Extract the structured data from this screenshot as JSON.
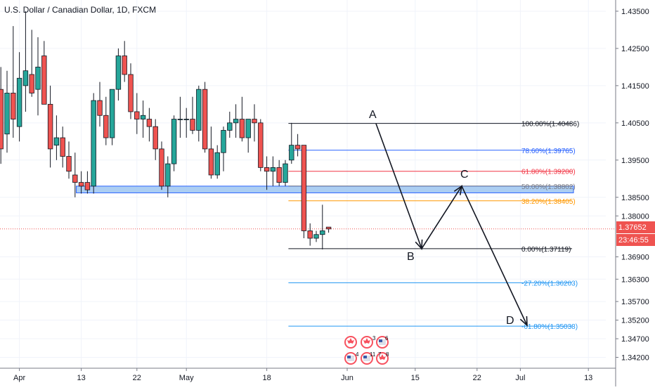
{
  "header": {
    "title": "U.S. Dollar / Canadian Dollar, 1D, FXCM"
  },
  "price_badge": {
    "price": "1.37652",
    "countdown": "23:46:55"
  },
  "colors": {
    "up": "#26a69a",
    "down": "#ef5350",
    "axis_text": "#131722",
    "grid": "#f0f3fa",
    "support_fill": "#9ec6f0",
    "support_stroke": "#2962ff",
    "price_line": "#ef5350",
    "fib_100": "#131722",
    "fib_786": "#2962ff",
    "fib_618": "#f23645",
    "fib_50": "#787b86",
    "fib_382": "#ff9800",
    "fib_0": "#131722",
    "fib_ext": "#2196f3"
  },
  "chart_data": {
    "type": "candlestick",
    "title": "U.S. Dollar / Canadian Dollar, 1D, FXCM",
    "ylim": [
      1.3404,
      1.4365
    ],
    "y_ticks": [
      "1.43500",
      "1.42500",
      "1.41500",
      "1.40500",
      "1.39500",
      "1.38500",
      "1.38000",
      "1.36900",
      "1.36300",
      "1.35700",
      "1.35200",
      "1.34700",
      "1.34200"
    ],
    "x_ticks": [
      {
        "label": "Apr",
        "i": 3
      },
      {
        "label": "13",
        "i": 13
      },
      {
        "label": "22",
        "i": 22
      },
      {
        "label": "May",
        "i": 30
      },
      {
        "label": "18",
        "i": 43
      },
      {
        "label": "Jun",
        "i": 56
      },
      {
        "label": "15",
        "i": 67
      },
      {
        "label": "22",
        "i": 77
      },
      {
        "label": "Jul",
        "i": 84
      },
      {
        "label": "13",
        "i": 95
      }
    ],
    "candles": [
      {
        "o": 1.414,
        "h": 1.42,
        "l": 1.394,
        "c": 1.398
      },
      {
        "o": 1.402,
        "h": 1.419,
        "l": 1.397,
        "c": 1.413
      },
      {
        "o": 1.413,
        "h": 1.431,
        "l": 1.401,
        "c": 1.406
      },
      {
        "o": 1.404,
        "h": 1.424,
        "l": 1.4,
        "c": 1.417
      },
      {
        "o": 1.415,
        "h": 1.435,
        "l": 1.408,
        "c": 1.419
      },
      {
        "o": 1.418,
        "h": 1.43,
        "l": 1.412,
        "c": 1.413
      },
      {
        "o": 1.414,
        "h": 1.428,
        "l": 1.407,
        "c": 1.42
      },
      {
        "o": 1.423,
        "h": 1.427,
        "l": 1.41,
        "c": 1.41
      },
      {
        "o": 1.41,
        "h": 1.415,
        "l": 1.393,
        "c": 1.398
      },
      {
        "o": 1.399,
        "h": 1.407,
        "l": 1.395,
        "c": 1.401
      },
      {
        "o": 1.401,
        "h": 1.404,
        "l": 1.393,
        "c": 1.396
      },
      {
        "o": 1.396,
        "h": 1.4,
        "l": 1.39,
        "c": 1.392
      },
      {
        "o": 1.391,
        "h": 1.397,
        "l": 1.385,
        "c": 1.389
      },
      {
        "o": 1.389,
        "h": 1.392,
        "l": 1.386,
        "c": 1.388
      },
      {
        "o": 1.389,
        "h": 1.392,
        "l": 1.386,
        "c": 1.387
      },
      {
        "o": 1.388,
        "h": 1.413,
        "l": 1.386,
        "c": 1.411
      },
      {
        "o": 1.411,
        "h": 1.416,
        "l": 1.404,
        "c": 1.407
      },
      {
        "o": 1.407,
        "h": 1.412,
        "l": 1.399,
        "c": 1.401
      },
      {
        "o": 1.401,
        "h": 1.414,
        "l": 1.399,
        "c": 1.414
      },
      {
        "o": 1.414,
        "h": 1.425,
        "l": 1.411,
        "c": 1.423
      },
      {
        "o": 1.423,
        "h": 1.427,
        "l": 1.416,
        "c": 1.418
      },
      {
        "o": 1.418,
        "h": 1.421,
        "l": 1.406,
        "c": 1.408
      },
      {
        "o": 1.408,
        "h": 1.413,
        "l": 1.402,
        "c": 1.406
      },
      {
        "o": 1.406,
        "h": 1.411,
        "l": 1.401,
        "c": 1.407
      },
      {
        "o": 1.406,
        "h": 1.409,
        "l": 1.4,
        "c": 1.404
      },
      {
        "o": 1.404,
        "h": 1.406,
        "l": 1.395,
        "c": 1.398
      },
      {
        "o": 1.398,
        "h": 1.4,
        "l": 1.387,
        "c": 1.388
      },
      {
        "o": 1.388,
        "h": 1.396,
        "l": 1.385,
        "c": 1.394
      },
      {
        "o": 1.394,
        "h": 1.407,
        "l": 1.392,
        "c": 1.406
      },
      {
        "o": 1.406,
        "h": 1.412,
        "l": 1.401,
        "c": 1.406
      },
      {
        "o": 1.406,
        "h": 1.409,
        "l": 1.401,
        "c": 1.406
      },
      {
        "o": 1.406,
        "h": 1.412,
        "l": 1.402,
        "c": 1.403
      },
      {
        "o": 1.403,
        "h": 1.415,
        "l": 1.4,
        "c": 1.414
      },
      {
        "o": 1.414,
        "h": 1.416,
        "l": 1.397,
        "c": 1.398
      },
      {
        "o": 1.398,
        "h": 1.404,
        "l": 1.39,
        "c": 1.391
      },
      {
        "o": 1.391,
        "h": 1.399,
        "l": 1.39,
        "c": 1.397
      },
      {
        "o": 1.397,
        "h": 1.404,
        "l": 1.392,
        "c": 1.403
      },
      {
        "o": 1.403,
        "h": 1.408,
        "l": 1.401,
        "c": 1.405
      },
      {
        "o": 1.405,
        "h": 1.41,
        "l": 1.401,
        "c": 1.406
      },
      {
        "o": 1.406,
        "h": 1.412,
        "l": 1.4,
        "c": 1.401
      },
      {
        "o": 1.401,
        "h": 1.406,
        "l": 1.397,
        "c": 1.406
      },
      {
        "o": 1.406,
        "h": 1.41,
        "l": 1.4,
        "c": 1.405
      },
      {
        "o": 1.405,
        "h": 1.406,
        "l": 1.392,
        "c": 1.393
      },
      {
        "o": 1.393,
        "h": 1.396,
        "l": 1.387,
        "c": 1.392
      },
      {
        "o": 1.392,
        "h": 1.396,
        "l": 1.388,
        "c": 1.393
      },
      {
        "o": 1.393,
        "h": 1.395,
        "l": 1.388,
        "c": 1.389
      },
      {
        "o": 1.389,
        "h": 1.395,
        "l": 1.388,
        "c": 1.394
      },
      {
        "o": 1.395,
        "h": 1.405,
        "l": 1.394,
        "c": 1.399
      },
      {
        "o": 1.399,
        "h": 1.402,
        "l": 1.396,
        "c": 1.398
      },
      {
        "o": 1.399,
        "h": 1.399,
        "l": 1.374,
        "c": 1.376
      },
      {
        "o": 1.376,
        "h": 1.378,
        "l": 1.372,
        "c": 1.374
      },
      {
        "o": 1.374,
        "h": 1.376,
        "l": 1.373,
        "c": 1.375
      },
      {
        "o": 1.375,
        "h": 1.383,
        "l": 1.371,
        "c": 1.376
      },
      {
        "o": 1.377,
        "h": 1.377,
        "l": 1.3755,
        "c": 1.3765
      }
    ],
    "support_zone": {
      "from": 1.388,
      "to": 1.3862
    },
    "fib_levels": [
      {
        "label": "100.00%(1.40486)",
        "value": 1.40486,
        "key": "fib_100"
      },
      {
        "label": "78.60%(1.39765)",
        "value": 1.39765,
        "key": "fib_786"
      },
      {
        "label": "61.80%(1.39200)",
        "value": 1.392,
        "key": "fib_618"
      },
      {
        "label": "50.00%(1.38802)",
        "value": 1.38802,
        "key": "fib_50"
      },
      {
        "label": "38.20%(1.38405)",
        "value": 1.38405,
        "key": "fib_382"
      },
      {
        "label": "0.00%(1.37119)",
        "value": 1.37119,
        "key": "fib_0"
      },
      {
        "label": "-27.20%(1.36203)",
        "value": 1.36203,
        "key": "fib_ext"
      },
      {
        "label": "-61.80%(1.35038)",
        "value": 1.35038,
        "key": "fib_ext"
      }
    ],
    "waves": [
      {
        "label": "A",
        "i": 64,
        "value": 1.4048
      },
      {
        "label": "B",
        "i": 69,
        "value": 1.3712
      },
      {
        "label": "C",
        "i": 74,
        "value": 1.388
      },
      {
        "label": "D",
        "i": 85,
        "value": 1.3506
      }
    ],
    "current_price": 1.37652
  }
}
